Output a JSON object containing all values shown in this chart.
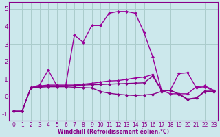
{
  "xlabel": "Windchill (Refroidissement éolien,°C)",
  "background_color": "#cce8ec",
  "grid_color": "#aacccc",
  "xlim": [
    -0.5,
    23.5
  ],
  "ylim": [
    -1.4,
    5.4
  ],
  "yticks": [
    -1,
    0,
    1,
    2,
    3,
    4,
    5
  ],
  "xticks": [
    0,
    1,
    2,
    3,
    4,
    5,
    6,
    7,
    8,
    9,
    10,
    11,
    12,
    13,
    14,
    15,
    16,
    17,
    18,
    19,
    20,
    21,
    22,
    23
  ],
  "lines": [
    {
      "x": [
        0,
        1,
        2,
        3,
        4,
        5,
        6,
        7,
        8,
        9,
        10,
        11,
        12,
        13,
        14,
        15,
        16,
        17,
        18,
        19,
        20,
        21,
        22,
        23
      ],
      "y": [
        -0.85,
        -0.85,
        0.5,
        0.65,
        1.5,
        0.6,
        0.6,
        3.5,
        3.1,
        4.05,
        4.05,
        4.75,
        4.85,
        4.85,
        4.75,
        3.65,
        2.25,
        0.35,
        0.35,
        1.3,
        1.35,
        0.5,
        0.55,
        0.3
      ],
      "color": "#990099",
      "linewidth": 1.0,
      "marker": "D",
      "markersize": 2.0
    },
    {
      "x": [
        0,
        1,
        2,
        3,
        4,
        5,
        6,
        7,
        8,
        9,
        10,
        11,
        12,
        13,
        14,
        15,
        16,
        17,
        18,
        19,
        20,
        21,
        22,
        23
      ],
      "y": [
        -0.85,
        -0.85,
        0.5,
        0.6,
        0.65,
        0.65,
        0.65,
        0.65,
        0.7,
        0.75,
        0.82,
        0.88,
        0.9,
        0.97,
        1.05,
        1.1,
        1.25,
        0.35,
        0.15,
        0.15,
        0.15,
        0.55,
        0.6,
        0.35
      ],
      "color": "#990099",
      "linewidth": 1.0,
      "marker": "D",
      "markersize": 2.0
    },
    {
      "x": [
        0,
        1,
        2,
        3,
        4,
        5,
        6,
        7,
        8,
        9,
        10,
        11,
        12,
        13,
        14,
        15,
        16,
        17,
        18,
        19,
        20,
        21,
        22,
        23
      ],
      "y": [
        -0.85,
        -0.85,
        0.5,
        0.55,
        0.6,
        0.6,
        0.6,
        0.62,
        0.65,
        0.67,
        0.68,
        0.7,
        0.72,
        0.74,
        0.76,
        0.78,
        1.15,
        0.35,
        0.35,
        0.15,
        -0.15,
        -0.08,
        0.3,
        0.3
      ],
      "color": "#880088",
      "linewidth": 1.0,
      "marker": "D",
      "markersize": 2.0
    },
    {
      "x": [
        0,
        1,
        2,
        3,
        4,
        5,
        6,
        7,
        8,
        9,
        10,
        11,
        12,
        13,
        14,
        15,
        16,
        17,
        18,
        19,
        20,
        21,
        22,
        23
      ],
      "y": [
        -0.85,
        -0.85,
        0.5,
        0.52,
        0.55,
        0.55,
        0.55,
        0.52,
        0.5,
        0.48,
        0.28,
        0.18,
        0.12,
        0.08,
        0.05,
        0.08,
        0.12,
        0.28,
        0.35,
        0.12,
        -0.18,
        -0.1,
        0.28,
        0.28
      ],
      "color": "#880088",
      "linewidth": 1.0,
      "marker": "D",
      "markersize": 2.0
    }
  ],
  "tick_color": "#880088",
  "tick_fontsize": 5.5,
  "xlabel_fontsize": 5.5,
  "spine_color": "#880088"
}
